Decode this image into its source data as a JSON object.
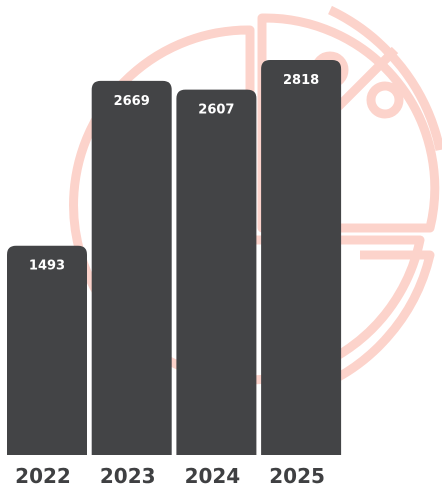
{
  "chart_data": {
    "type": "bar",
    "categories": [
      "2022",
      "2023",
      "2024",
      "2025"
    ],
    "values": [
      1493,
      2669,
      2607,
      2818
    ],
    "color": "#434446"
  }
}
